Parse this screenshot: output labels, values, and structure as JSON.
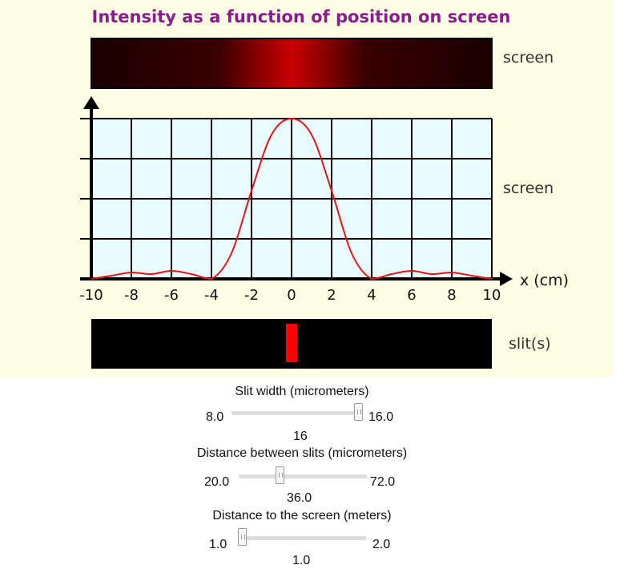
{
  "title": "Intensity as a function of position on screen",
  "colors": {
    "title": "#8a1c8e",
    "curve": "#ee1111",
    "slit": "#ff0000",
    "plot_bg": "#e8fbff",
    "panel_bg": "#fdfde4"
  },
  "labels": {
    "screen_top": "screen",
    "screen_graph": "screen",
    "slits": "slit(s)",
    "x_axis": "x (cm)"
  },
  "chart_data": {
    "type": "line",
    "title": "Intensity as a function of position on screen",
    "xlabel": "x (cm)",
    "ylabel": "",
    "xlim": [
      -10,
      10
    ],
    "ylim": [
      0,
      1
    ],
    "xticks": [
      "-10",
      "-8",
      "-6",
      "-4",
      "-2",
      "0",
      "2",
      "4",
      "6",
      "8",
      "10"
    ],
    "grid": true,
    "series": [
      {
        "x": [
          -10,
          -9,
          -8,
          -7,
          -6,
          -5,
          -4,
          -3,
          -2,
          -1,
          0,
          1,
          2,
          3,
          4,
          5,
          6,
          7,
          8,
          9,
          10
        ],
        "values": [
          0.0,
          0.02,
          0.04,
          0.03,
          0.05,
          0.03,
          0.0,
          0.16,
          0.55,
          0.9,
          1.0,
          0.9,
          0.55,
          0.16,
          0.0,
          0.03,
          0.05,
          0.03,
          0.04,
          0.02,
          0.0
        ]
      }
    ]
  },
  "controls": {
    "slit_width": {
      "label": "Slit width (micrometers)",
      "min": "8.0",
      "max": "16.0",
      "value": "16",
      "fraction": 1.0
    },
    "slit_distance": {
      "label": "Distance between slits (micrometers)",
      "min": "20.0",
      "max": "72.0",
      "value": "36.0",
      "fraction": 0.31
    },
    "screen_distance": {
      "label": "Distance to the screen (meters)",
      "min": "1.0",
      "max": "2.0",
      "value": "1.0",
      "fraction": 0.0
    }
  }
}
